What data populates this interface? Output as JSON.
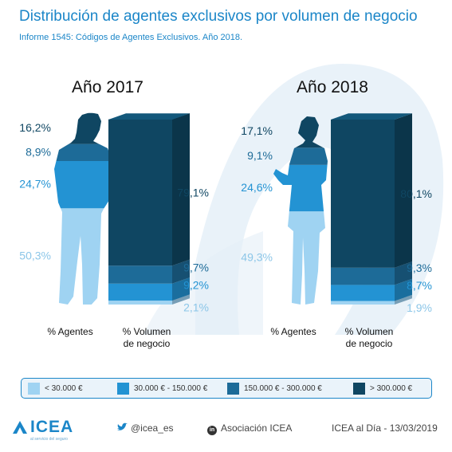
{
  "header": {
    "title": "Distribución de agentes exclusivos por volumen de negocio",
    "subtitle": "Informe 1545: Códigos de Agentes Exclusivos. Año 2018."
  },
  "colors": {
    "band1": "#9fd3f2",
    "band2": "#2393d3",
    "band3": "#1d6b98",
    "band4": "#0f4662",
    "accent": "#1b86c8"
  },
  "chart_data": [
    {
      "type": "bar",
      "title": "Año 2017",
      "categories": [
        "% Agentes",
        "% Volumen de negocio"
      ],
      "series": [
        {
          "name": "< 30.000 €",
          "values": [
            50.3,
            2.1
          ],
          "labels": [
            "50,3%",
            "2,1%"
          ]
        },
        {
          "name": "30.000 € - 150.000 €",
          "values": [
            24.7,
            9.2
          ],
          "labels": [
            "24,7%",
            "9,2%"
          ]
        },
        {
          "name": "150.000 € - 300.000 €",
          "values": [
            8.9,
            9.7
          ],
          "labels": [
            "8,9%",
            "9,7%"
          ]
        },
        {
          "name": "> 300.000 €",
          "values": [
            16.2,
            79.1
          ],
          "labels": [
            "16,2%",
            "79,1%"
          ]
        }
      ]
    },
    {
      "type": "bar",
      "title": "Año 2018",
      "categories": [
        "% Agentes",
        "% Volumen de negocio"
      ],
      "series": [
        {
          "name": "< 30.000 €",
          "values": [
            49.3,
            1.9
          ],
          "labels": [
            "49,3%",
            "1,9%"
          ]
        },
        {
          "name": "30.000 € - 150.000 €",
          "values": [
            24.6,
            8.7
          ],
          "labels": [
            "24,6%",
            "8,7%"
          ]
        },
        {
          "name": "150.000 € - 300.000 €",
          "values": [
            9.1,
            9.3
          ],
          "labels": [
            "9,1%",
            "9,3%"
          ]
        },
        {
          "name": "> 300.000 €",
          "values": [
            17.1,
            80.1
          ],
          "labels": [
            "17,1%",
            "80,1%"
          ]
        }
      ]
    }
  ],
  "panels": [
    {
      "agents_label": "% Agentes",
      "volume_label_line1": "% Volumen",
      "volume_label_line2": "de negocio"
    },
    {
      "agents_label": "% Agentes",
      "volume_label_line1": "% Volumen",
      "volume_label_line2": "de negocio"
    }
  ],
  "legend": [
    {
      "label": "< 30.000 €"
    },
    {
      "label": "30.000 € - 150.000 €"
    },
    {
      "label": "150.000 € - 300.000 €"
    },
    {
      "label": "> 300.000 €"
    }
  ],
  "footer": {
    "logo_text": "ICEA",
    "logo_tagline": "al servicio del seguro",
    "twitter": "@icea_es",
    "twitter_icon": "twitter-bird-icon",
    "linkedin": "Asociación ICEA",
    "linkedin_icon": "linkedin-icon",
    "date_note": "ICEA al Día - 13/03/2019"
  }
}
